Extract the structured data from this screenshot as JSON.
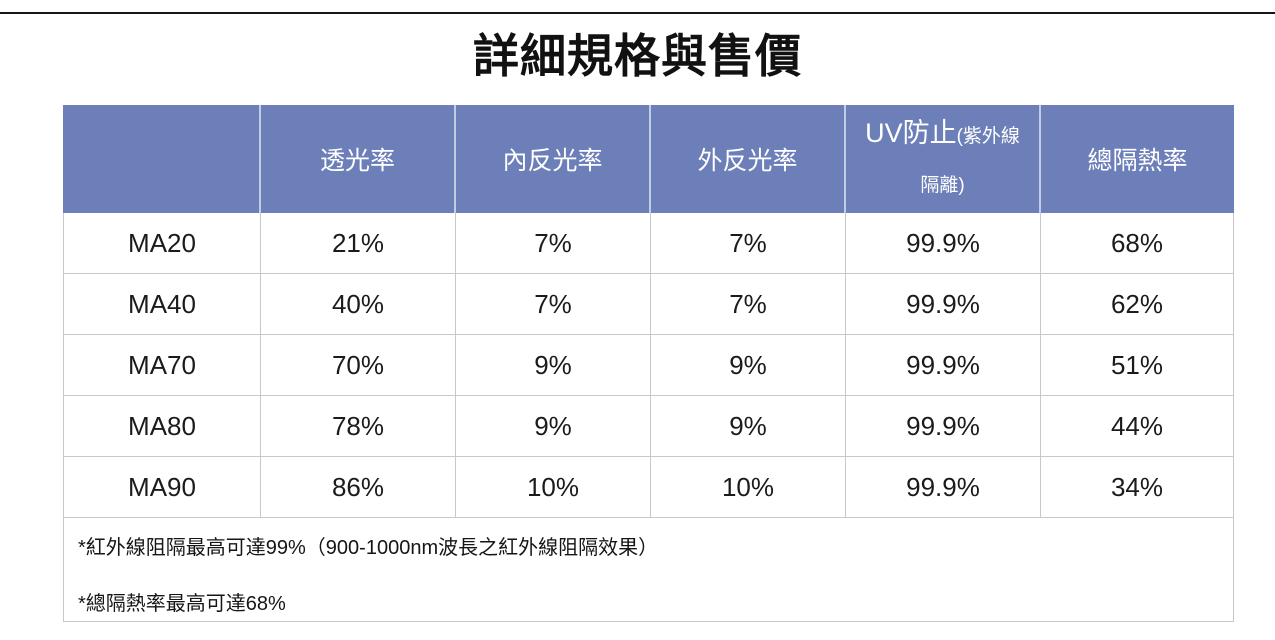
{
  "page": {
    "title": "詳細規格與售價"
  },
  "colors": {
    "header_bg": "#6D7FB8",
    "header_text": "#FFFFFF",
    "border": "#C8C8C8",
    "body_text": "#1B1B1B"
  },
  "table": {
    "header": {
      "model": "",
      "vlt": "透光率",
      "inner_reflect": "內反光率",
      "outer_reflect": "外反光率",
      "uv_main": "UV防止",
      "uv_sub": "(紫外線隔離)",
      "heat": "總隔熱率"
    },
    "rows": [
      {
        "model": "MA20",
        "vlt": "21%",
        "inner_reflect": "7%",
        "outer_reflect": "7%",
        "uv": "99.9%",
        "heat": "68%"
      },
      {
        "model": "MA40",
        "vlt": "40%",
        "inner_reflect": "7%",
        "outer_reflect": "7%",
        "uv": "99.9%",
        "heat": "62%"
      },
      {
        "model": "MA70",
        "vlt": "70%",
        "inner_reflect": "9%",
        "outer_reflect": "9%",
        "uv": "99.9%",
        "heat": "51%"
      },
      {
        "model": "MA80",
        "vlt": "78%",
        "inner_reflect": "9%",
        "outer_reflect": "9%",
        "uv": "99.9%",
        "heat": "44%"
      },
      {
        "model": "MA90",
        "vlt": "86%",
        "inner_reflect": "10%",
        "outer_reflect": "10%",
        "uv": "99.9%",
        "heat": "34%"
      }
    ],
    "footnotes": [
      "*紅外線阻隔最高可達99%（900-1000nm波長之紅外線阻隔效果）",
      "*總隔熱率最高可達68%"
    ]
  }
}
